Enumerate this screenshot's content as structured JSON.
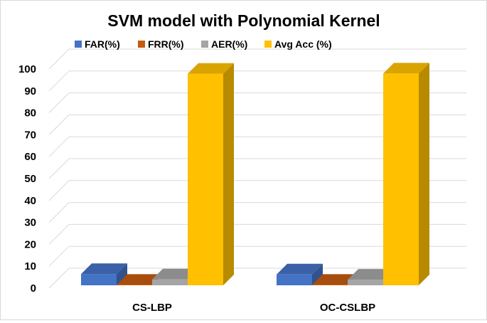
{
  "chart_data": {
    "type": "bar",
    "title": "SVM model with Polynomial Kernel",
    "categories": [
      "CS-LBP",
      "OC-CSLBP"
    ],
    "series": [
      {
        "name": "FAR(%)",
        "color": "#4472C4",
        "values": [
          5.2,
          5.0
        ]
      },
      {
        "name": "FRR(%)",
        "color": "#C55A11",
        "values": [
          0.2,
          0.2
        ]
      },
      {
        "name": "AER(%)",
        "color": "#A5A5A5",
        "values": [
          2.7,
          2.6
        ]
      },
      {
        "name": "Avg Acc (%)",
        "color": "#FFC000",
        "values": [
          97.8,
          97.9
        ]
      }
    ],
    "ylim": [
      0,
      100
    ],
    "yticks": [
      0,
      10,
      20,
      30,
      40,
      50,
      60,
      70,
      80,
      90,
      100
    ],
    "xlabel": "",
    "ylabel": "",
    "grid": true,
    "legend_position": "top"
  }
}
